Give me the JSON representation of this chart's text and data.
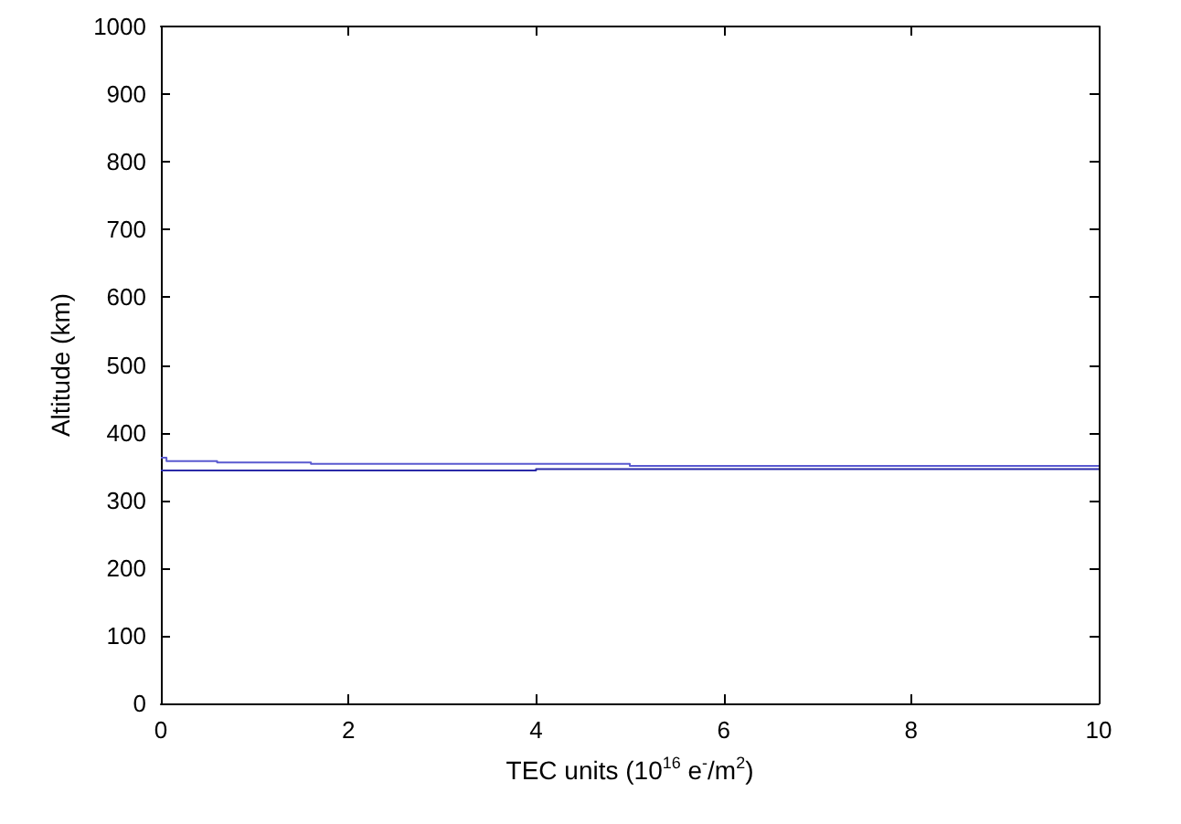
{
  "chart_data": {
    "type": "step",
    "xlabel": "TEC units (10$^{16}$ e$^{-}$/m$^{2}$)",
    "ylabel": "Altitude (km)",
    "xlim": [
      0,
      10
    ],
    "xticks": [
      0,
      2,
      4,
      6,
      8,
      10
    ],
    "ylim": [
      0,
      1000
    ],
    "yticks": [
      0,
      100,
      200,
      300,
      400,
      500,
      600,
      700,
      800,
      900,
      1000
    ],
    "grid": false,
    "marker": "none",
    "line_style": "solid",
    "series": [
      {
        "color": "#5a5ad0",
        "x": [
          0,
          0.06,
          0.6,
          1.6,
          5,
          10
        ],
        "values": [
          363,
          358,
          356,
          354,
          351,
          351
        ]
      },
      {
        "color": "#2a2aa8",
        "x": [
          0,
          4,
          10
        ],
        "values": [
          344,
          346,
          346
        ]
      }
    ]
  }
}
